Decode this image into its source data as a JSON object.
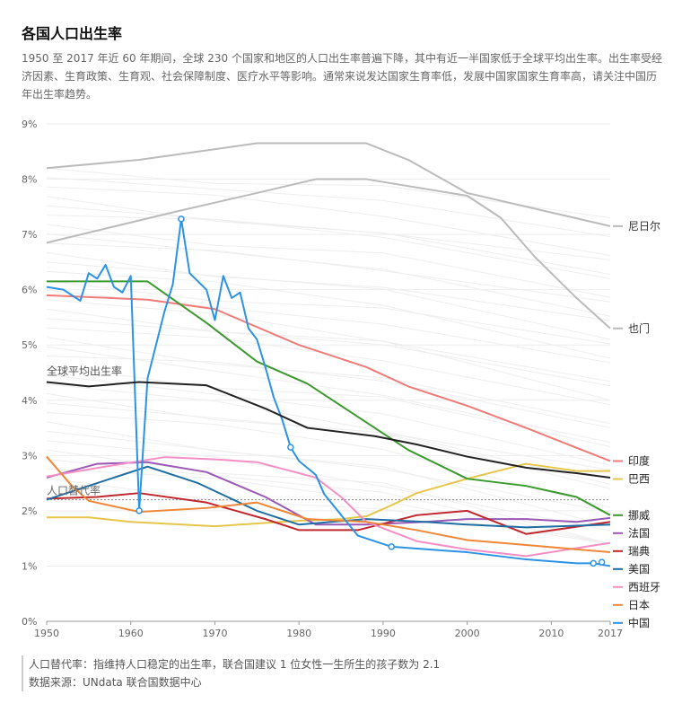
{
  "header": {
    "title": "各国人口出生率",
    "description": "1950 至 2017 年近 60 年期间，全球 230 个国家和地区的人口出生率普遍下降，其中有近一半国家低于全球平均出生率。出生率受经济因素、生育政策、生育观、社会保障制度、医疗水平等影响。通常来说发达国家生育率低，发展中国家国家生育率高，请关注中国历年出生率趋势。"
  },
  "notes": {
    "replacement_note": "人口替代率：指维持人口稳定的出生率，联合国建议 1 位女性一生所生的孩子数为 2.1",
    "source": "数据来源：UNdata 联合国数据中心"
  },
  "chart_data": {
    "type": "line",
    "xlim": [
      1950,
      2017
    ],
    "ylim": [
      0,
      9
    ],
    "x_ticks": [
      "1950",
      "1960",
      "1970",
      "1980",
      "1990",
      "2000",
      "2010",
      "2017"
    ],
    "y_ticks": [
      "0%",
      "1%",
      "2%",
      "3%",
      "4%",
      "5%",
      "6%",
      "7%",
      "8%",
      "9%"
    ],
    "annotations": {
      "world_average": "全球平均出生率",
      "replacement_rate": "人口替代率",
      "replacement_value": 2.2
    },
    "background_series_color": "#eeeeee",
    "series": [
      {
        "name": "尼日尔",
        "color": "#bbbbbb",
        "labeled": true,
        "points": [
          [
            1950,
            8.2
          ],
          [
            1961,
            8.35
          ],
          [
            1975,
            8.65
          ],
          [
            1988,
            8.65
          ],
          [
            1993,
            8.35
          ],
          [
            2000,
            7.75
          ],
          [
            2017,
            7.15
          ]
        ]
      },
      {
        "name": "也门",
        "color": "#bbbbbb",
        "labeled": true,
        "points": [
          [
            1950,
            6.85
          ],
          [
            1965,
            7.4
          ],
          [
            1975,
            7.75
          ],
          [
            1982,
            8.0
          ],
          [
            1988,
            8.0
          ],
          [
            2000,
            7.7
          ],
          [
            2004,
            7.3
          ],
          [
            2008,
            6.6
          ],
          [
            2013,
            5.85
          ],
          [
            2017,
            5.3
          ]
        ]
      },
      {
        "name": "印度",
        "color": "#f07b78",
        "labeled": true,
        "points": [
          [
            1950,
            5.9
          ],
          [
            1962,
            5.82
          ],
          [
            1970,
            5.65
          ],
          [
            1980,
            5.0
          ],
          [
            1988,
            4.6
          ],
          [
            1993,
            4.25
          ],
          [
            2000,
            3.9
          ],
          [
            2007,
            3.5
          ],
          [
            2017,
            2.9
          ]
        ]
      },
      {
        "name": "巴西",
        "color": "#e6c64a",
        "labeled": true,
        "points": [
          [
            1950,
            1.88
          ],
          [
            1955,
            1.88
          ],
          [
            1960,
            1.8
          ],
          [
            1970,
            1.72
          ],
          [
            1980,
            1.82
          ],
          [
            1985,
            1.85
          ],
          [
            1988,
            1.9
          ],
          [
            1991,
            2.1
          ],
          [
            1994,
            2.32
          ],
          [
            2000,
            2.58
          ],
          [
            2007,
            2.85
          ],
          [
            2013,
            2.72
          ],
          [
            2017,
            2.72
          ]
        ]
      },
      {
        "name": "挪威",
        "color": "#3a9a2d",
        "labeled": true,
        "points": [
          [
            1950,
            6.15
          ],
          [
            1962,
            6.15
          ],
          [
            1969,
            5.4
          ],
          [
            1975,
            4.7
          ],
          [
            1981,
            4.3
          ],
          [
            1986,
            3.8
          ],
          [
            1993,
            3.1
          ],
          [
            2000,
            2.58
          ],
          [
            2007,
            2.45
          ],
          [
            2013,
            2.25
          ],
          [
            2017,
            1.92
          ]
        ]
      },
      {
        "name": "法国",
        "color": "#9b59b6",
        "labeled": true,
        "points": [
          [
            1950,
            2.6
          ],
          [
            1956,
            2.85
          ],
          [
            1962,
            2.88
          ],
          [
            1969,
            2.7
          ],
          [
            1976,
            2.25
          ],
          [
            1982,
            1.75
          ],
          [
            1988,
            1.75
          ],
          [
            1995,
            1.8
          ],
          [
            2000,
            1.85
          ],
          [
            2007,
            1.85
          ],
          [
            2013,
            1.8
          ],
          [
            2017,
            1.87
          ]
        ]
      },
      {
        "name": "瑞典",
        "color": "#c0272d",
        "labeled": true,
        "points": [
          [
            1950,
            2.22
          ],
          [
            1956,
            2.25
          ],
          [
            1961,
            2.32
          ],
          [
            1969,
            2.15
          ],
          [
            1976,
            1.85
          ],
          [
            1980,
            1.65
          ],
          [
            1987,
            1.65
          ],
          [
            1994,
            1.92
          ],
          [
            2000,
            2.0
          ],
          [
            2007,
            1.58
          ],
          [
            2017,
            1.8
          ]
        ]
      },
      {
        "name": "美国",
        "color": "#1f6ea3",
        "labeled": true,
        "points": [
          [
            1950,
            2.2
          ],
          [
            1956,
            2.5
          ],
          [
            1962,
            2.8
          ],
          [
            1968,
            2.5
          ],
          [
            1975,
            2.0
          ],
          [
            1980,
            1.75
          ],
          [
            1988,
            1.85
          ],
          [
            1995,
            1.8
          ],
          [
            2000,
            1.75
          ],
          [
            2007,
            1.7
          ],
          [
            2017,
            1.75
          ]
        ]
      },
      {
        "name": "西班牙",
        "color": "#f48fc6",
        "labeled": true,
        "points": [
          [
            1950,
            2.62
          ],
          [
            1957,
            2.8
          ],
          [
            1964,
            2.97
          ],
          [
            1970,
            2.93
          ],
          [
            1975,
            2.88
          ],
          [
            1982,
            2.6
          ],
          [
            1985,
            2.25
          ],
          [
            1988,
            1.8
          ],
          [
            1994,
            1.45
          ],
          [
            2000,
            1.3
          ],
          [
            2007,
            1.18
          ],
          [
            2017,
            1.42
          ]
        ]
      },
      {
        "name": "日本",
        "color": "#f08737",
        "labeled": true,
        "points": [
          [
            1950,
            2.98
          ],
          [
            1953,
            2.45
          ],
          [
            1955,
            2.18
          ],
          [
            1961,
            1.98
          ],
          [
            1969,
            2.05
          ],
          [
            1975,
            2.15
          ],
          [
            1981,
            1.85
          ],
          [
            1988,
            1.8
          ],
          [
            1994,
            1.65
          ],
          [
            2000,
            1.47
          ],
          [
            2007,
            1.38
          ],
          [
            2017,
            1.25
          ]
        ]
      },
      {
        "name": "中国",
        "color": "#2b93e6",
        "labeled": true,
        "points": [
          [
            1950,
            6.05
          ],
          [
            1952,
            6.0
          ],
          [
            1954,
            5.8
          ],
          [
            1955,
            6.3
          ],
          [
            1956,
            6.2
          ],
          [
            1957,
            6.45
          ],
          [
            1958,
            6.05
          ],
          [
            1959,
            5.95
          ],
          [
            1960,
            6.25
          ],
          [
            1961,
            2.0
          ],
          [
            1962,
            4.4
          ],
          [
            1963,
            5.0
          ],
          [
            1964,
            5.6
          ],
          [
            1965,
            6.1
          ],
          [
            1966,
            7.28
          ],
          [
            1967,
            6.3
          ],
          [
            1968,
            6.15
          ],
          [
            1969,
            6.0
          ],
          [
            1970,
            5.45
          ],
          [
            1971,
            6.25
          ],
          [
            1972,
            5.85
          ],
          [
            1973,
            5.95
          ],
          [
            1974,
            5.3
          ],
          [
            1975,
            5.1
          ],
          [
            1976,
            4.6
          ],
          [
            1977,
            4.05
          ],
          [
            1978,
            3.65
          ],
          [
            1979,
            3.15
          ],
          [
            1980,
            2.9
          ],
          [
            1982,
            2.65
          ],
          [
            1983,
            2.3
          ],
          [
            1987,
            1.55
          ],
          [
            1991,
            1.35
          ],
          [
            2000,
            1.25
          ],
          [
            2007,
            1.12
          ],
          [
            2013,
            1.05
          ],
          [
            2015,
            1.05
          ],
          [
            2017,
            1.0
          ]
        ],
        "markers": [
          [
            1961,
            2.0
          ],
          [
            1966,
            7.28
          ],
          [
            1979,
            3.15
          ],
          [
            1991,
            1.35
          ],
          [
            2015,
            1.05
          ],
          [
            2016,
            1.07
          ]
        ]
      },
      {
        "name": "全球平均出生率",
        "color": "#222222",
        "labeled": false,
        "points": [
          [
            1950,
            4.33
          ],
          [
            1955,
            4.25
          ],
          [
            1961,
            4.33
          ],
          [
            1969,
            4.27
          ],
          [
            1976,
            3.85
          ],
          [
            1981,
            3.5
          ],
          [
            1989,
            3.35
          ],
          [
            1994,
            3.2
          ],
          [
            2000,
            2.98
          ],
          [
            2007,
            2.78
          ],
          [
            2013,
            2.68
          ],
          [
            2017,
            2.6
          ]
        ]
      }
    ]
  }
}
